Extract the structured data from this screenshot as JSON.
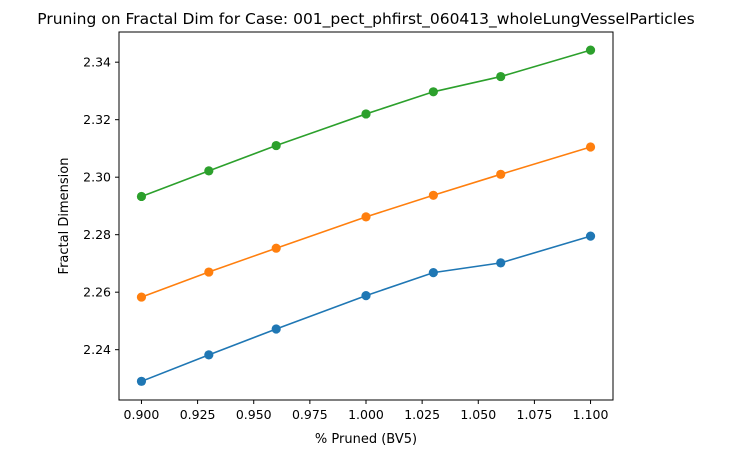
{
  "chart_data": {
    "type": "line",
    "title": "Pruning on Fractal Dim for Case: 001_pect_phfirst_060413_wholeLungVesselParticles",
    "xlabel": "% Pruned (BV5)",
    "ylabel": "Fractal Dimension",
    "x": [
      0.9,
      0.93,
      0.96,
      1.0,
      1.03,
      1.06,
      1.1
    ],
    "xlim": [
      0.89,
      1.11
    ],
    "ylim": [
      2.2225,
      2.3505
    ],
    "xticks": [
      0.9,
      0.925,
      0.95,
      0.975,
      1.0,
      1.025,
      1.05,
      1.075,
      1.1
    ],
    "xtick_labels": [
      "0.900",
      "0.925",
      "0.950",
      "0.975",
      "1.000",
      "1.025",
      "1.050",
      "1.075",
      "1.100"
    ],
    "yticks": [
      2.24,
      2.26,
      2.28,
      2.3,
      2.32,
      2.34
    ],
    "ytick_labels": [
      "2.24",
      "2.26",
      "2.28",
      "2.30",
      "2.32",
      "2.34"
    ],
    "grid": false,
    "legend": false,
    "markers": "circle",
    "series": [
      {
        "color": "#1f77b4",
        "values": [
          2.229,
          2.2382,
          2.2472,
          2.2588,
          2.2668,
          2.2702,
          2.2795
        ]
      },
      {
        "color": "#ff7f0e",
        "values": [
          2.2583,
          2.267,
          2.2753,
          2.2862,
          2.2937,
          2.301,
          2.3105
        ]
      },
      {
        "color": "#2ca02c",
        "values": [
          2.2933,
          2.3022,
          2.311,
          2.322,
          2.3297,
          2.335,
          2.3442
        ]
      }
    ]
  }
}
